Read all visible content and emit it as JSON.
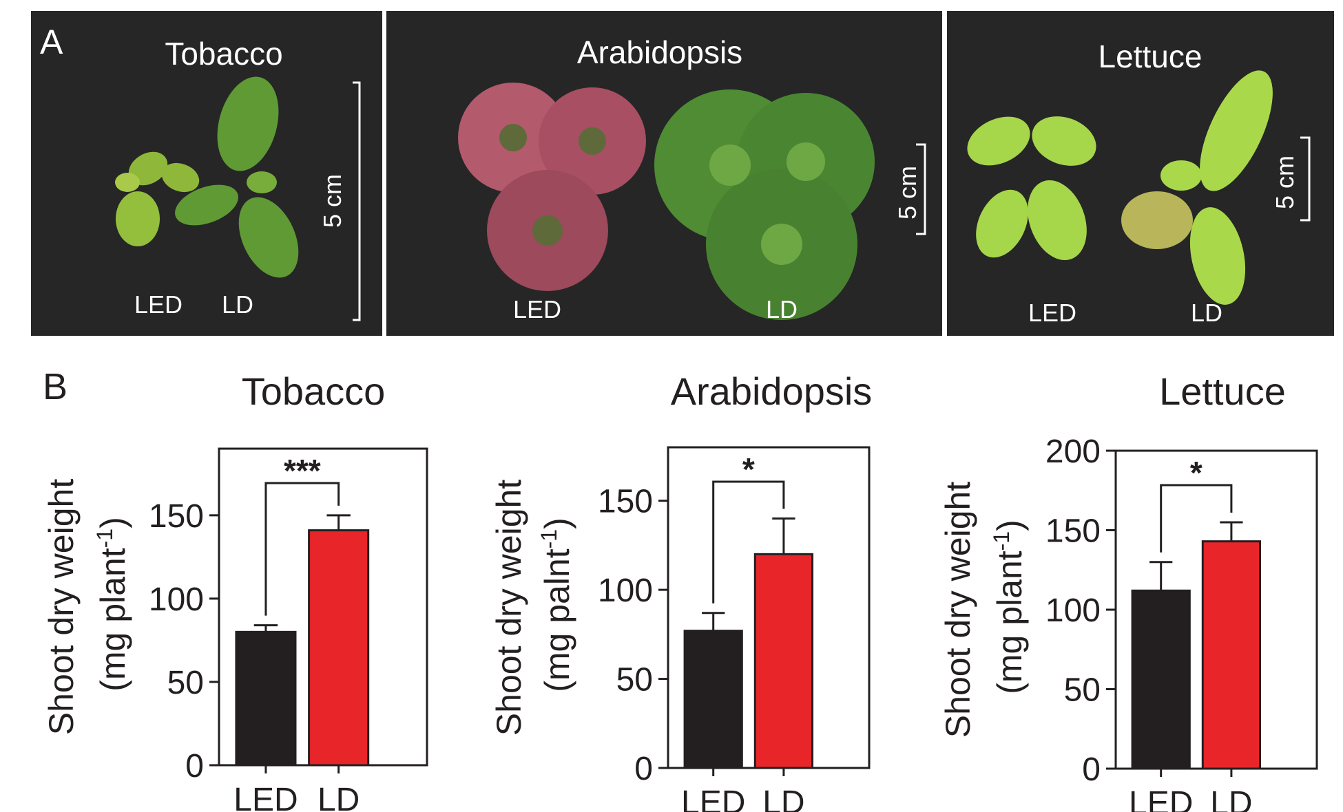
{
  "panel_a": {
    "label": "A",
    "photos": [
      {
        "species": "Tobacco",
        "labels": [
          "LED",
          "LD"
        ],
        "scale": "5 cm"
      },
      {
        "species": "Arabidopsis",
        "labels": [
          "LED",
          "LD"
        ],
        "scale": "5 cm"
      },
      {
        "species": "Lettuce",
        "labels": [
          "LED",
          "LD"
        ],
        "scale": "5 cm"
      }
    ]
  },
  "panel_b": {
    "label": "B"
  },
  "colors": {
    "LED": "#231f20",
    "LD": "#e8262a",
    "photo_bg": "#262626"
  },
  "chart_data": [
    {
      "type": "bar",
      "title": "Tobacco",
      "ylabel": "Shoot dry weight",
      "yunit_prefix": "(mg plant",
      "yunit_sup": "-1",
      "yunit_suffix": ")",
      "categories": [
        "LED",
        "LD"
      ],
      "values": [
        80,
        141
      ],
      "errors": [
        4,
        9
      ],
      "significance": "***",
      "ylim": [
        0,
        190
      ],
      "yticks": [
        0,
        50,
        100,
        150
      ]
    },
    {
      "type": "bar",
      "title": "Arabidopsis",
      "ylabel": "Shoot dry weight",
      "yunit_prefix": "(mg palnt",
      "yunit_sup": "-1",
      "yunit_suffix": ")",
      "categories": [
        "LED",
        "LD"
      ],
      "values": [
        77,
        120
      ],
      "errors": [
        10,
        20
      ],
      "significance": "*",
      "ylim": [
        0,
        180
      ],
      "yticks": [
        0,
        50,
        100,
        150
      ]
    },
    {
      "type": "bar",
      "title": "Lettuce",
      "ylabel": "Shoot dry weight",
      "yunit_prefix": "(mg plant",
      "yunit_sup": "-1",
      "yunit_suffix": ")",
      "categories": [
        "LED",
        "LD"
      ],
      "values": [
        112,
        143
      ],
      "errors": [
        18,
        12
      ],
      "significance": "*",
      "ylim": [
        0,
        200
      ],
      "yticks": [
        0,
        50,
        100,
        150,
        200
      ]
    }
  ]
}
